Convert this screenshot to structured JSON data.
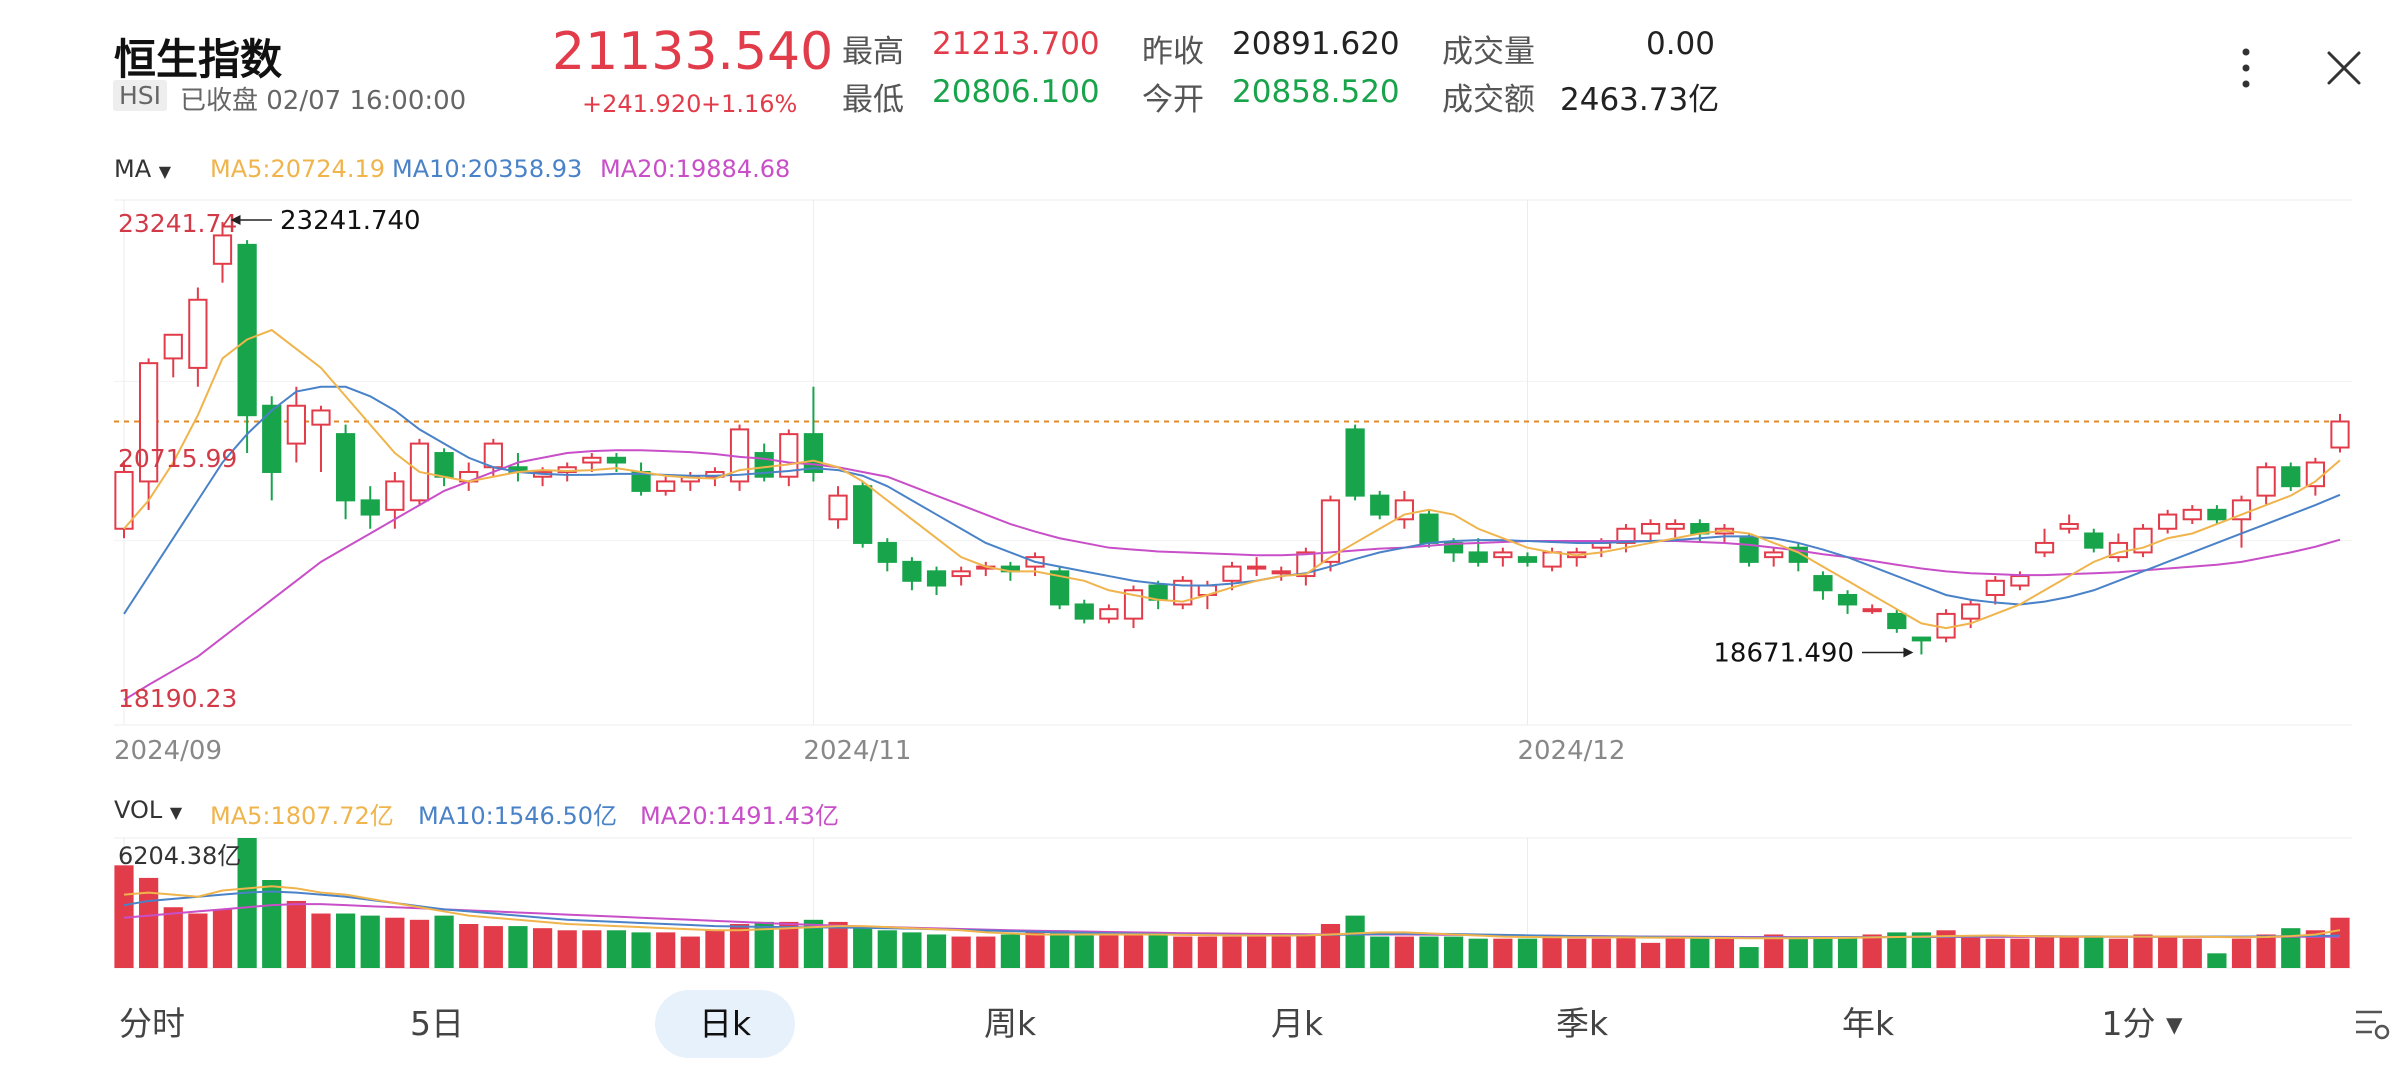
{
  "header": {
    "title": "恒生指数",
    "code": "HSI",
    "status": "已收盘 02/07 16:00:00",
    "price": "21133.540",
    "change": "+241.920",
    "change_pct": "+1.16%",
    "stats": {
      "high_label": "最高",
      "high": "21213.700",
      "low_label": "最低",
      "low": "20806.100",
      "prev_close_label": "昨收",
      "prev_close": "20891.620",
      "open_label": "今开",
      "open": "20858.520",
      "volume_label": "成交量",
      "volume": "0.00",
      "turnover_label": "成交额",
      "turnover": "2463.73亿"
    },
    "more_icon": "more-vertical-icon",
    "close_icon": "close-icon"
  },
  "indicators": {
    "ma_label": "MA",
    "ma5": "MA5:20724.19",
    "ma10": "MA10:20358.93",
    "ma20": "MA20:19884.68",
    "vol_label": "VOL",
    "vol_ma5": "MA5:1807.72亿",
    "vol_ma10": "MA10:1546.50亿",
    "vol_ma20": "MA20:1491.43亿"
  },
  "colors": {
    "up": "#e23c4a",
    "down": "#18a44b",
    "ma5": "#f0b44c",
    "ma10": "#4a82c8",
    "ma20": "#c84fc8",
    "last_price_line": "#e08a2b"
  },
  "tabs": [
    "分时",
    "5日",
    "日k",
    "周k",
    "月k",
    "季k",
    "年k",
    "1分"
  ],
  "active_tab": "日k",
  "chart_data": {
    "type": "candlestick",
    "price_axis_labels": {
      "top": "23241.74",
      "mid": "20715.99",
      "bottom": "18190.23"
    },
    "annotations": {
      "max": "23241.740",
      "min": "18671.490"
    },
    "x_ticks": [
      {
        "i": 0,
        "label": "2024/09"
      },
      {
        "i": 28,
        "label": "2024/11"
      },
      {
        "i": 57,
        "label": "2024/12"
      }
    ],
    "last_close": 21133.54,
    "ylim": [
      18190.23,
      23241.74
    ],
    "candles": [
      [
        20000,
        20600,
        19900,
        20720
      ],
      [
        20500,
        21750,
        20200,
        21800
      ],
      [
        21800,
        22050,
        21600,
        22000
      ],
      [
        21700,
        22420,
        21500,
        22550
      ],
      [
        22800,
        23100,
        22600,
        23241.74
      ],
      [
        23000,
        21200,
        20800,
        23050
      ],
      [
        21300,
        20600,
        20300,
        21400
      ],
      [
        20900,
        21300,
        20700,
        21500
      ],
      [
        21100,
        21250,
        20600,
        21300
      ],
      [
        21000,
        20300,
        20100,
        21100
      ],
      [
        20300,
        20150,
        20000,
        20450
      ],
      [
        20200,
        20500,
        20000,
        20600
      ],
      [
        20300,
        20900,
        20250,
        20950
      ],
      [
        20800,
        20550,
        20450,
        20850
      ],
      [
        20500,
        20600,
        20400,
        20700
      ],
      [
        20650,
        20900,
        20550,
        20950
      ],
      [
        20650,
        20600,
        20500,
        20800
      ],
      [
        20550,
        20600,
        20450,
        20650
      ],
      [
        20600,
        20650,
        20500,
        20700
      ],
      [
        20700,
        20750,
        20600,
        20800
      ],
      [
        20750,
        20700,
        20600,
        20800
      ],
      [
        20600,
        20400,
        20350,
        20700
      ],
      [
        20400,
        20500,
        20350,
        20550
      ],
      [
        20500,
        20550,
        20400,
        20600
      ],
      [
        20550,
        20600,
        20450,
        20650
      ],
      [
        20500,
        21050,
        20400,
        21100
      ],
      [
        20800,
        20550,
        20500,
        20900
      ],
      [
        20550,
        21000,
        20450,
        21050
      ],
      [
        21000,
        20600,
        20500,
        21500
      ],
      [
        20100,
        20350,
        20000,
        20450
      ],
      [
        20450,
        19850,
        19800,
        20500
      ],
      [
        19850,
        19650,
        19550,
        19900
      ],
      [
        19650,
        19450,
        19350,
        19700
      ],
      [
        19550,
        19400,
        19300,
        19600
      ],
      [
        19500,
        19550,
        19400,
        19600
      ],
      [
        19580,
        19600,
        19500,
        19650
      ],
      [
        19600,
        19550,
        19450,
        19650
      ],
      [
        19600,
        19700,
        19500,
        19750
      ],
      [
        19550,
        19200,
        19150,
        19600
      ],
      [
        19200,
        19050,
        19000,
        19250
      ],
      [
        19050,
        19150,
        19000,
        19200
      ],
      [
        19050,
        19350,
        18950,
        19400
      ],
      [
        19400,
        19250,
        19150,
        19450
      ],
      [
        19200,
        19450,
        19150,
        19500
      ],
      [
        19300,
        19400,
        19150,
        19450
      ],
      [
        19450,
        19600,
        19350,
        19650
      ],
      [
        19600,
        19600,
        19500,
        19700
      ],
      [
        19550,
        19550,
        19450,
        19600
      ],
      [
        19500,
        19750,
        19400,
        19800
      ],
      [
        19650,
        20300,
        19550,
        20350
      ],
      [
        21050,
        20350,
        20300,
        21100
      ],
      [
        20350,
        20150,
        20100,
        20400
      ],
      [
        20100,
        20300,
        20000,
        20400
      ],
      [
        20150,
        19850,
        19800,
        20200
      ],
      [
        19850,
        19750,
        19650,
        19900
      ],
      [
        19750,
        19650,
        19600,
        19900
      ],
      [
        19700,
        19750,
        19600,
        19800
      ],
      [
        19700,
        19650,
        19600,
        19750
      ],
      [
        19600,
        19750,
        19550,
        19800
      ],
      [
        19700,
        19750,
        19600,
        19800
      ],
      [
        19800,
        19850,
        19700,
        19900
      ],
      [
        19850,
        20000,
        19750,
        20050
      ],
      [
        19950,
        20050,
        19850,
        20100
      ],
      [
        20000,
        20050,
        19900,
        20100
      ],
      [
        20050,
        19950,
        19850,
        20100
      ],
      [
        19950,
        20000,
        19850,
        20050
      ],
      [
        19900,
        19650,
        19600,
        19950
      ],
      [
        19700,
        19750,
        19600,
        19800
      ],
      [
        19800,
        19650,
        19550,
        19850
      ],
      [
        19500,
        19350,
        19250,
        19550
      ],
      [
        19300,
        19200,
        19100,
        19350
      ],
      [
        19150,
        19150,
        19100,
        19200
      ],
      [
        19100,
        18950,
        18900,
        19150
      ],
      [
        18850,
        18820,
        18671.49,
        18850
      ],
      [
        18850,
        19100,
        18800,
        19150
      ],
      [
        19050,
        19200,
        18950,
        19250
      ],
      [
        19300,
        19450,
        19200,
        19500
      ],
      [
        19400,
        19500,
        19350,
        19550
      ],
      [
        19750,
        19850,
        19700,
        20000
      ],
      [
        20000,
        20050,
        19950,
        20150
      ],
      [
        19950,
        19800,
        19750,
        20000
      ],
      [
        19700,
        19850,
        19650,
        19950
      ],
      [
        19750,
        20000,
        19700,
        20050
      ],
      [
        20000,
        20150,
        19950,
        20200
      ],
      [
        20100,
        20200,
        20050,
        20250
      ],
      [
        20200,
        20100,
        20050,
        20250
      ],
      [
        20100,
        20300,
        19800,
        20350
      ],
      [
        20350,
        20650,
        20250,
        20700
      ],
      [
        20650,
        20450,
        20400,
        20700
      ],
      [
        20450,
        20700,
        20350,
        20750
      ],
      [
        20858.52,
        21133.54,
        20806.1,
        21213.7
      ]
    ],
    "ma5": [
      20000,
      20300,
      20700,
      21200,
      21800,
      22000,
      22100,
      21900,
      21700,
      21400,
      21100,
      20800,
      20600,
      20550,
      20500,
      20550,
      20600,
      20620,
      20610,
      20620,
      20640,
      20600,
      20560,
      20540,
      20530,
      20620,
      20650,
      20680,
      20720,
      20650,
      20500,
      20300,
      20100,
      19900,
      19700,
      19600,
      19550,
      19550,
      19500,
      19450,
      19350,
      19300,
      19250,
      19230,
      19300,
      19380,
      19450,
      19500,
      19520,
      19700,
      19850,
      20000,
      20150,
      20200,
      20150,
      20000,
      19900,
      19800,
      19750,
      19720,
      19750,
      19800,
      19850,
      19900,
      19950,
      19980,
      19950,
      19850,
      19750,
      19600,
      19450,
      19300,
      19150,
      19000,
      18950,
      19000,
      19100,
      19200,
      19350,
      19500,
      19650,
      19750,
      19800,
      19900,
      19950,
      20050,
      20150,
      20250,
      20350,
      20500,
      20724.19
    ],
    "ma10": [
      19100,
      19500,
      19900,
      20300,
      20700,
      21000,
      21250,
      21450,
      21500,
      21500,
      21400,
      21250,
      21050,
      20900,
      20750,
      20650,
      20600,
      20580,
      20570,
      20570,
      20580,
      20580,
      20570,
      20560,
      20560,
      20570,
      20590,
      20610,
      20640,
      20620,
      20560,
      20450,
      20300,
      20150,
      20000,
      19850,
      19750,
      19650,
      19600,
      19550,
      19500,
      19450,
      19420,
      19400,
      19400,
      19420,
      19450,
      19500,
      19530,
      19600,
      19680,
      19750,
      19800,
      19850,
      19870,
      19880,
      19880,
      19870,
      19860,
      19850,
      19850,
      19860,
      19870,
      19880,
      19900,
      19920,
      19920,
      19900,
      19850,
      19780,
      19700,
      19600,
      19500,
      19400,
      19300,
      19250,
      19220,
      19200,
      19230,
      19280,
      19350,
      19450,
      19550,
      19650,
      19750,
      19850,
      19950,
      20050,
      20150,
      20250,
      20358.93
    ],
    "ma20": [
      18190.23,
      18350,
      18500,
      18650,
      18850,
      19050,
      19250,
      19450,
      19650,
      19800,
      19950,
      20100,
      20250,
      20400,
      20500,
      20600,
      20700,
      20750,
      20800,
      20820,
      20830,
      20830,
      20820,
      20810,
      20790,
      20760,
      20740,
      20700,
      20680,
      20650,
      20600,
      20550,
      20450,
      20350,
      20250,
      20150,
      20050,
      19970,
      19900,
      19850,
      19800,
      19780,
      19760,
      19750,
      19740,
      19730,
      19720,
      19720,
      19730,
      19750,
      19770,
      19790,
      19800,
      19820,
      19840,
      19850,
      19860,
      19870,
      19870,
      19870,
      19870,
      19870,
      19870,
      19870,
      19860,
      19850,
      19830,
      19800,
      19770,
      19730,
      19700,
      19660,
      19620,
      19580,
      19550,
      19530,
      19520,
      19510,
      19510,
      19520,
      19530,
      19540,
      19560,
      19580,
      19600,
      19620,
      19650,
      19700,
      19750,
      19810,
      19884.68
    ],
    "volume_axis_label": "6204.38亿",
    "volume_max": 6204.38,
    "volumes": [
      4900,
      4300,
      2900,
      2600,
      2800,
      6204.38,
      4200,
      3200,
      2600,
      2600,
      2500,
      2400,
      2300,
      2500,
      2100,
      2000,
      2000,
      1900,
      1800,
      1800,
      1800,
      1700,
      1700,
      1500,
      1800,
      2100,
      2200,
      2200,
      2300,
      2200,
      2000,
      1800,
      1700,
      1600,
      1500,
      1500,
      1600,
      1700,
      1800,
      1700,
      1600,
      1600,
      1600,
      1500,
      1500,
      1500,
      1500,
      1500,
      1600,
      2100,
      2500,
      1500,
      1500,
      1500,
      1500,
      1400,
      1400,
      1400,
      1500,
      1400,
      1400,
      1500,
      1200,
      1500,
      1500,
      1500,
      1000,
      1600,
      1500,
      1500,
      1500,
      1600,
      1700,
      1700,
      1800,
      1500,
      1400,
      1400,
      1500,
      1500,
      1500,
      1400,
      1600,
      1500,
      1400,
      700,
      1400,
      1600,
      1900,
      1800,
      2400
    ],
    "vol_ma5": [
      3500,
      3600,
      3500,
      3400,
      3700,
      3800,
      3900,
      3800,
      3600,
      3500,
      3300,
      3100,
      2900,
      2700,
      2500,
      2400,
      2300,
      2200,
      2100,
      2050,
      2000,
      1950,
      1900,
      1850,
      1800,
      1800,
      1850,
      1900,
      1950,
      2000,
      2000,
      1950,
      1900,
      1850,
      1800,
      1700,
      1650,
      1600,
      1600,
      1600,
      1600,
      1600,
      1600,
      1580,
      1570,
      1560,
      1550,
      1550,
      1560,
      1600,
      1650,
      1700,
      1700,
      1650,
      1600,
      1550,
      1500,
      1480,
      1470,
      1460,
      1460,
      1460,
      1450,
      1450,
      1440,
      1430,
      1420,
      1420,
      1420,
      1430,
      1440,
      1460,
      1480,
      1500,
      1520,
      1540,
      1550,
      1530,
      1510,
      1500,
      1500,
      1500,
      1500,
      1500,
      1500,
      1480,
      1470,
      1480,
      1520,
      1600,
      1807.72
    ],
    "vol_ma10": [
      3000,
      3200,
      3300,
      3400,
      3500,
      3600,
      3650,
      3600,
      3500,
      3400,
      3250,
      3100,
      2950,
      2800,
      2700,
      2600,
      2500,
      2400,
      2300,
      2250,
      2200,
      2150,
      2100,
      2050,
      2000,
      1980,
      1960,
      1950,
      1940,
      1930,
      1920,
      1900,
      1880,
      1850,
      1820,
      1790,
      1760,
      1730,
      1700,
      1680,
      1660,
      1640,
      1620,
      1600,
      1590,
      1580,
      1570,
      1570,
      1570,
      1580,
      1600,
      1620,
      1630,
      1630,
      1620,
      1600,
      1580,
      1560,
      1540,
      1520,
      1510,
      1500,
      1490,
      1480,
      1470,
      1460,
      1450,
      1450,
      1450,
      1450,
      1460,
      1470,
      1480,
      1490,
      1500,
      1510,
      1520,
      1520,
      1520,
      1510,
      1510,
      1500,
      1500,
      1500,
      1500,
      1500,
      1500,
      1510,
      1520,
      1530,
      1546.5
    ],
    "vol_ma20": [
      2400,
      2500,
      2600,
      2700,
      2800,
      2900,
      3000,
      3050,
      3050,
      3000,
      2950,
      2900,
      2850,
      2800,
      2750,
      2700,
      2650,
      2600,
      2550,
      2500,
      2450,
      2400,
      2350,
      2300,
      2250,
      2200,
      2150,
      2100,
      2060,
      2020,
      1980,
      1950,
      1920,
      1890,
      1860,
      1830,
      1800,
      1780,
      1760,
      1740,
      1720,
      1700,
      1680,
      1660,
      1650,
      1640,
      1630,
      1620,
      1610,
      1600,
      1600,
      1600,
      1600,
      1590,
      1580,
      1570,
      1560,
      1550,
      1540,
      1530,
      1520,
      1510,
      1500,
      1495,
      1490,
      1485,
      1480,
      1478,
      1476,
      1475,
      1475,
      1476,
      1478,
      1480,
      1482,
      1484,
      1486,
      1488,
      1490,
      1490,
      1490,
      1490,
      1490,
      1490,
      1490,
      1490,
      1490,
      1490,
      1490,
      1491,
      1491.43
    ]
  }
}
